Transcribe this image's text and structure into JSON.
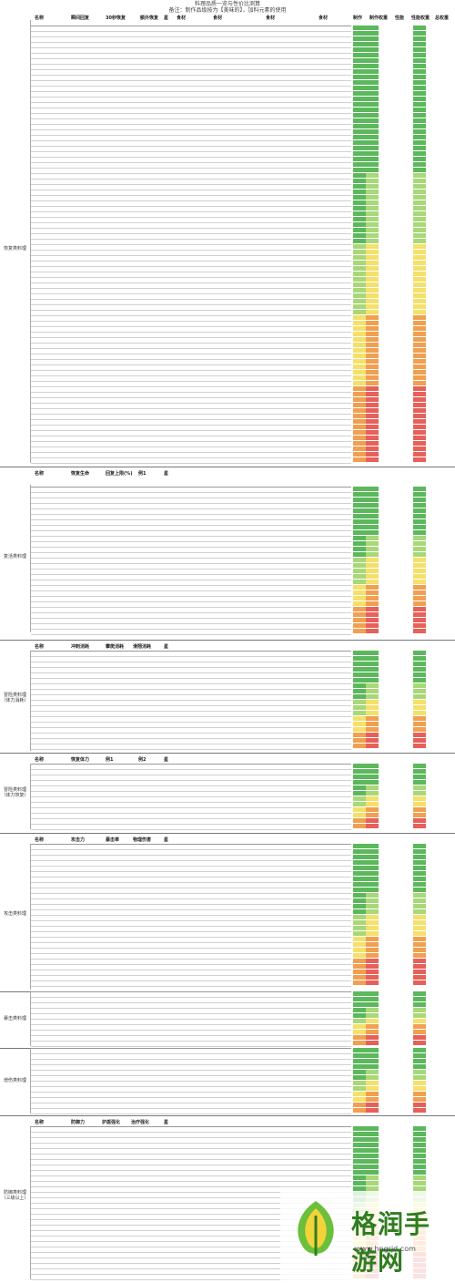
{
  "doc": {
    "title": "料理品质一览与性价比测算",
    "note": "备注：制作品级按为【美味的】，加料元素的使用"
  },
  "sections": [
    {
      "label": "恢复类料理",
      "headers": [
        "名称",
        "瞬间回复",
        "30秒恢复",
        "额外恢复",
        "星",
        "食材",
        "",
        "分",
        "量",
        "食材",
        "分",
        "量",
        "食材",
        "分",
        "量",
        "食材",
        "分",
        "量",
        "制作",
        "制作权重",
        "性能",
        "性能权重",
        "总权重"
      ]
    },
    {
      "label": "复活类料理",
      "headers": [
        "名称",
        "恢复生命",
        "回复上限(%)",
        "例1",
        "星"
      ]
    },
    {
      "label": "冒险类料理（体力消耗）",
      "headers": [
        "名称",
        "冲刺消耗",
        "攀爬消耗",
        "滑翔消耗",
        "星"
      ]
    },
    {
      "label": "冒险类料理（体力恢复）",
      "headers": [
        "名称",
        "恢复体力",
        "例1",
        "例2",
        "星"
      ]
    },
    {
      "label": "攻击类料理",
      "headers": [
        "名称",
        "攻击力",
        "暴击率",
        "物理伤害",
        "星"
      ]
    },
    {
      "label": "暴击类料理",
      "headers": []
    },
    {
      "label": "增伤类料理",
      "headers": []
    },
    {
      "label": "防御类料理（三级以上）",
      "headers": [
        "名称",
        "防御力",
        "护盾强化",
        "治疗强化",
        "星"
      ]
    }
  ],
  "watermark": {
    "brand": "格润手游网",
    "url": "www.hngrjd.com"
  },
  "colors": {
    "green": "#5cb85c",
    "light_green": "#a8d878",
    "yellow": "#f4e06a",
    "orange": "#f0a050",
    "red": "#e8605a",
    "header_bg": "#dfe8f3"
  }
}
